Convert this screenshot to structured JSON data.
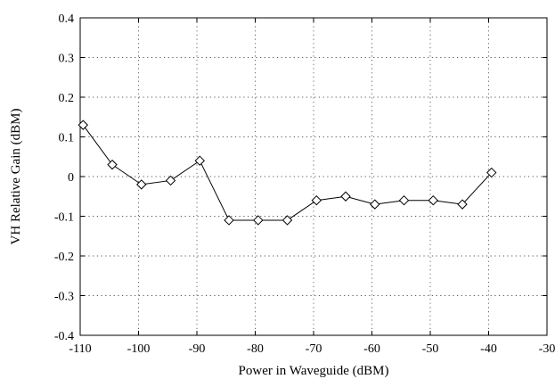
{
  "chart_data": {
    "type": "line",
    "title": "",
    "xlabel": "Power in Waveguide (dBM)",
    "ylabel": "VH Relative Gain (dBM)",
    "xlim": [
      -110,
      -30
    ],
    "ylim": [
      -0.4,
      0.4
    ],
    "x_ticks": [
      -110,
      -100,
      -90,
      -80,
      -70,
      -60,
      -50,
      -40,
      -30
    ],
    "y_ticks": [
      0.4,
      0.3,
      0.2,
      0.1,
      0,
      -0.1,
      -0.2,
      -0.3,
      -0.4
    ],
    "x_tick_labels": [
      "-110",
      "-100",
      "-90",
      "-80",
      "-70",
      "-60",
      "-50",
      "-40",
      "-30"
    ],
    "y_tick_labels": [
      "0.4",
      "0.3",
      "0.2",
      "0.1",
      "0",
      "-0.1",
      "-0.2",
      "-0.3",
      "-0.4"
    ],
    "grid": true,
    "marker": "diamond",
    "series": [
      {
        "x": [
          -109.5,
          -104.5,
          -99.5,
          -94.5,
          -89.5,
          -84.5,
          -79.5,
          -74.5,
          -69.5,
          -64.5,
          -59.5,
          -54.5,
          -49.5,
          -44.5,
          -39.5
        ],
        "y": [
          0.13,
          0.03,
          -0.02,
          -0.01,
          0.04,
          -0.11,
          -0.11,
          -0.11,
          -0.06,
          -0.05,
          -0.07,
          -0.06,
          -0.06,
          -0.07,
          0.01
        ]
      }
    ]
  }
}
